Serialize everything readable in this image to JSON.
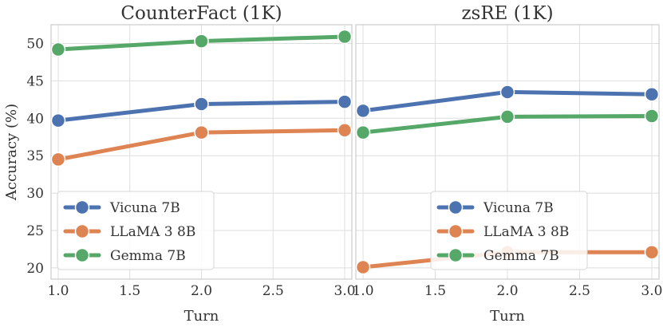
{
  "chart_data": [
    {
      "type": "line",
      "title": "CounterFact (1K)",
      "xlabel": "Turn",
      "ylabel": "Accuracy (%)",
      "x": [
        1.0,
        2.0,
        3.0
      ],
      "xticks": [
        "1.0",
        "1.5",
        "2.0",
        "2.5",
        "3.0"
      ],
      "xlim": [
        0.95,
        3.05
      ],
      "yticks": [
        "20",
        "25",
        "30",
        "35",
        "40",
        "45",
        "50"
      ],
      "ylim": [
        18.5,
        52.5
      ],
      "grid": true,
      "legend_position": "lower-left",
      "series": [
        {
          "name": "Vicuna 7B",
          "values": [
            39.7,
            41.9,
            42.2
          ],
          "color": "#4c72b0"
        },
        {
          "name": "LLaMA 3 8B",
          "values": [
            34.5,
            38.1,
            38.4
          ],
          "color": "#dd8452"
        },
        {
          "name": "Gemma 7B",
          "values": [
            49.2,
            50.3,
            50.9
          ],
          "color": "#55a868"
        }
      ]
    },
    {
      "type": "line",
      "title": "zsRE (1K)",
      "xlabel": "Turn",
      "ylabel": "",
      "x": [
        1.0,
        2.0,
        3.0
      ],
      "xticks": [
        "1.0",
        "1.5",
        "2.0",
        "2.5",
        "3.0"
      ],
      "xlim": [
        0.95,
        3.05
      ],
      "yticks": [
        "20",
        "25",
        "30",
        "35",
        "40",
        "45",
        "50"
      ],
      "ylim": [
        18.5,
        52.5
      ],
      "grid": true,
      "legend_position": "lower-center",
      "series": [
        {
          "name": "Vicuna 7B",
          "values": [
            41.0,
            43.5,
            43.2
          ],
          "color": "#4c72b0"
        },
        {
          "name": "LLaMA 3 8B",
          "values": [
            20.1,
            22.1,
            22.1
          ],
          "color": "#dd8452"
        },
        {
          "name": "Gemma 7B",
          "values": [
            38.1,
            40.2,
            40.3
          ],
          "color": "#55a868"
        }
      ]
    }
  ]
}
